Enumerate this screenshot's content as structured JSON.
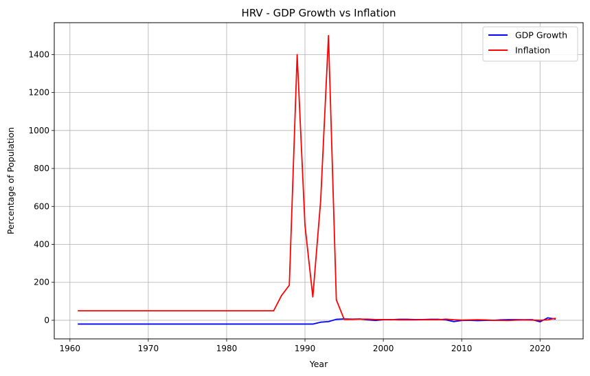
{
  "chart_data": {
    "type": "line",
    "title": "HRV - GDP Growth vs Inflation",
    "xlabel": "Year",
    "ylabel": "Percentage of Population",
    "xlim": [
      1958,
      2025.5
    ],
    "ylim": [
      -98,
      1568
    ],
    "xticks": [
      1960,
      1970,
      1980,
      1990,
      2000,
      2010,
      2020
    ],
    "yticks": [
      0,
      200,
      400,
      600,
      800,
      1000,
      1200,
      1400
    ],
    "grid": true,
    "legend_position": "top-right",
    "series": [
      {
        "name": "GDP Growth",
        "color": "#0000ff",
        "points": [
          [
            1961,
            -20
          ],
          [
            1991,
            -20
          ],
          [
            1992,
            -10
          ],
          [
            1993,
            -7
          ],
          [
            1994,
            5
          ],
          [
            1995,
            7
          ],
          [
            1996,
            6
          ],
          [
            1997,
            7
          ],
          [
            1998,
            2
          ],
          [
            1999,
            -1
          ],
          [
            2000,
            3
          ],
          [
            2001,
            3
          ],
          [
            2002,
            5
          ],
          [
            2003,
            5
          ],
          [
            2004,
            4
          ],
          [
            2005,
            4
          ],
          [
            2006,
            5
          ],
          [
            2007,
            5
          ],
          [
            2008,
            2
          ],
          [
            2009,
            -7
          ],
          [
            2010,
            -1
          ],
          [
            2011,
            0
          ],
          [
            2012,
            -2
          ],
          [
            2013,
            -0.5
          ],
          [
            2014,
            -0.1
          ],
          [
            2015,
            2.5
          ],
          [
            2016,
            3.5
          ],
          [
            2017,
            3.4
          ],
          [
            2018,
            2.9
          ],
          [
            2019,
            3.5
          ],
          [
            2020,
            -8
          ],
          [
            2021,
            13
          ],
          [
            2022,
            6
          ]
        ]
      },
      {
        "name": "Inflation",
        "color": "#ff0000",
        "points": [
          [
            1961,
            50
          ],
          [
            1986,
            50
          ],
          [
            1987,
            130
          ],
          [
            1988,
            185
          ],
          [
            1989,
            1400
          ],
          [
            1990,
            500
          ],
          [
            1991,
            123
          ],
          [
            1992,
            630
          ],
          [
            1993,
            1500
          ],
          [
            1994,
            108
          ],
          [
            1995,
            5
          ],
          [
            1996,
            5
          ],
          [
            1997,
            6
          ],
          [
            1998,
            6
          ],
          [
            1999,
            4
          ],
          [
            2000,
            4
          ],
          [
            2001,
            4
          ],
          [
            2002,
            2
          ],
          [
            2003,
            2
          ],
          [
            2004,
            2
          ],
          [
            2005,
            3
          ],
          [
            2006,
            3
          ],
          [
            2007,
            3
          ],
          [
            2008,
            6
          ],
          [
            2009,
            3
          ],
          [
            2010,
            1
          ],
          [
            2011,
            2
          ],
          [
            2012,
            3
          ],
          [
            2013,
            2
          ],
          [
            2014,
            0
          ],
          [
            2015,
            -0.5
          ],
          [
            2016,
            -1
          ],
          [
            2017,
            1
          ],
          [
            2018,
            1.5
          ],
          [
            2019,
            1
          ],
          [
            2020,
            0
          ],
          [
            2021,
            2.5
          ],
          [
            2022,
            10.5
          ]
        ]
      }
    ]
  }
}
